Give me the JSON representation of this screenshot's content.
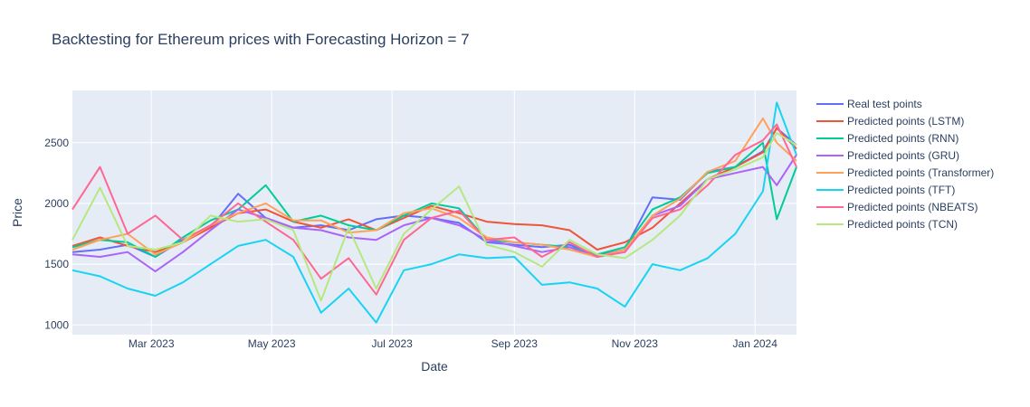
{
  "chart_data": {
    "type": "line",
    "title": "Backtesting for Ethereum prices with Forecasting Horizon = 7",
    "xlabel": "Date",
    "ylabel": "Price",
    "x_ticks": [
      "Mar 2023",
      "May 2023",
      "Jul 2023",
      "Sep 2023",
      "Nov 2023",
      "Jan 2024"
    ],
    "y_ticks": [
      1000,
      1500,
      2000,
      2500
    ],
    "xlim": [
      "2023-01-20",
      "2024-01-22"
    ],
    "ylim": [
      920,
      2930
    ],
    "grid": true,
    "legend_position": "right",
    "dates": [
      "2023-01-20",
      "2023-02-03",
      "2023-02-17",
      "2023-03-03",
      "2023-03-17",
      "2023-03-31",
      "2023-04-14",
      "2023-04-28",
      "2023-05-12",
      "2023-05-26",
      "2023-06-09",
      "2023-06-23",
      "2023-07-07",
      "2023-07-21",
      "2023-08-04",
      "2023-08-18",
      "2023-09-01",
      "2023-09-15",
      "2023-09-29",
      "2023-10-13",
      "2023-10-27",
      "2023-11-10",
      "2023-11-24",
      "2023-12-08",
      "2023-12-22",
      "2024-01-05",
      "2024-01-12",
      "2024-01-22"
    ],
    "series": [
      {
        "name": "Real test points",
        "color": "#636efa",
        "values": [
          1600,
          1620,
          1660,
          1560,
          1700,
          1800,
          2080,
          1880,
          1800,
          1820,
          1780,
          1870,
          1900,
          1880,
          1840,
          1680,
          1660,
          1640,
          1660,
          1570,
          1620,
          2050,
          2030,
          2260,
          2300,
          2430,
          2620,
          2480
        ]
      },
      {
        "name": "Predicted points (LSTM)",
        "color": "#EF553B",
        "values": [
          1650,
          1720,
          1650,
          1600,
          1680,
          1800,
          1920,
          1950,
          1850,
          1800,
          1870,
          1780,
          1880,
          1980,
          1920,
          1850,
          1830,
          1820,
          1780,
          1620,
          1680,
          1800,
          2000,
          2200,
          2300,
          2420,
          2620,
          2450
        ]
      },
      {
        "name": "Predicted points (RNN)",
        "color": "#00cc96",
        "values": [
          1640,
          1700,
          1680,
          1560,
          1720,
          1860,
          1950,
          2150,
          1850,
          1900,
          1820,
          1780,
          1900,
          2000,
          1960,
          1700,
          1680,
          1660,
          1640,
          1580,
          1640,
          1950,
          2050,
          2250,
          2300,
          2500,
          1870,
          2300
        ]
      },
      {
        "name": "Predicted points (GRU)",
        "color": "#ab63fa",
        "values": [
          1580,
          1560,
          1600,
          1440,
          1600,
          1780,
          1950,
          1880,
          1800,
          1780,
          1720,
          1700,
          1820,
          1880,
          1820,
          1700,
          1650,
          1600,
          1640,
          1560,
          1600,
          1900,
          1980,
          2200,
          2250,
          2300,
          2150,
          2400
        ]
      },
      {
        "name": "Predicted points (Transformer)",
        "color": "#FFA15A",
        "values": [
          1620,
          1700,
          1750,
          1580,
          1680,
          1820,
          1920,
          2000,
          1860,
          1860,
          1760,
          1780,
          1920,
          1960,
          1880,
          1720,
          1680,
          1660,
          1620,
          1560,
          1620,
          1900,
          2040,
          2260,
          2350,
          2700,
          2500,
          2350
        ]
      },
      {
        "name": "Predicted points (TFT)",
        "color": "#19d3f3",
        "values": [
          1450,
          1400,
          1300,
          1240,
          1350,
          1500,
          1650,
          1700,
          1560,
          1100,
          1300,
          1020,
          1450,
          1500,
          1580,
          1550,
          1560,
          1330,
          1350,
          1300,
          1150,
          1500,
          1450,
          1550,
          1750,
          2100,
          2830,
          2400
        ]
      },
      {
        "name": "Predicted points (NBEATS)",
        "color": "#FF6692",
        "values": [
          1950,
          2300,
          1750,
          1900,
          1700,
          1820,
          2000,
          1850,
          1700,
          1380,
          1550,
          1250,
          1700,
          1880,
          1940,
          1700,
          1720,
          1560,
          1680,
          1560,
          1600,
          1880,
          1950,
          2150,
          2400,
          2520,
          2650,
          2300
        ]
      },
      {
        "name": "Predicted points (TCN)",
        "color": "#B6E880",
        "values": [
          1700,
          2130,
          1650,
          1620,
          1680,
          1900,
          1850,
          1870,
          1780,
          1200,
          1800,
          1300,
          1750,
          1950,
          2140,
          1660,
          1600,
          1480,
          1700,
          1580,
          1550,
          1700,
          1900,
          2200,
          2280,
          2380,
          2580,
          2480
        ]
      }
    ]
  }
}
